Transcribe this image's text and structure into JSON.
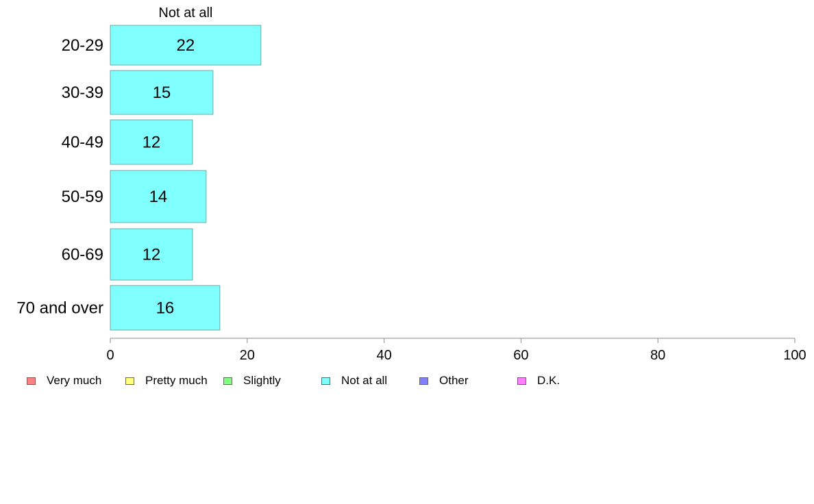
{
  "chart_data": {
    "type": "bar",
    "orientation": "horizontal",
    "series_title": "Not at all",
    "categories": [
      "20-29",
      "30-39",
      "40-49",
      "50-59",
      "60-69",
      "70 and over"
    ],
    "series": [
      {
        "name": "Not at all",
        "values": [
          22,
          15,
          12,
          14,
          12,
          16
        ],
        "color": "#80ffff"
      }
    ],
    "xlim": [
      0,
      100
    ],
    "xticks": [
      0,
      20,
      40,
      60,
      80,
      100
    ],
    "grid": false,
    "legend_position": "bottom"
  },
  "legend": [
    {
      "label": "Very much",
      "color": "#ff8080"
    },
    {
      "label": "Pretty much",
      "color": "#ffff80"
    },
    {
      "label": "Slightly",
      "color": "#80ff80"
    },
    {
      "label": "Not at all",
      "color": "#80ffff"
    },
    {
      "label": "Other",
      "color": "#8080ff"
    },
    {
      "label": "D.K.",
      "color": "#ff80ff"
    }
  ]
}
